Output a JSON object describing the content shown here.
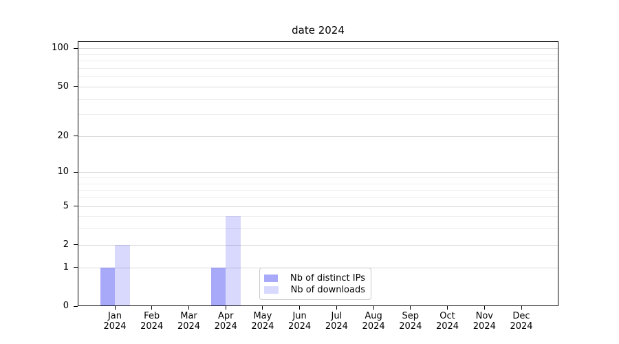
{
  "chart_data": {
    "type": "bar",
    "title": "date 2024",
    "year_label": "2024",
    "categories": [
      "Jan",
      "Feb",
      "Mar",
      "Apr",
      "May",
      "Jun",
      "Jul",
      "Aug",
      "Sep",
      "Oct",
      "Nov",
      "Dec"
    ],
    "series": [
      {
        "name": "Nb of distinct IPs",
        "color": "rgba(2,2,240,0.34)",
        "values": [
          1,
          0,
          0,
          1,
          0,
          0,
          0,
          0,
          0,
          0,
          0,
          0
        ]
      },
      {
        "name": "Nb of downloads",
        "color": "rgba(2,2,240,0.15)",
        "values": [
          2,
          0,
          0,
          4,
          0,
          0,
          0,
          0,
          0,
          0,
          0,
          0
        ]
      }
    ],
    "y_axis": {
      "scale": "log1p",
      "ticks": [
        0,
        1,
        2,
        5,
        10,
        20,
        50,
        100
      ],
      "minor_gridlines": [
        3,
        4,
        6,
        7,
        8,
        9,
        30,
        40,
        60,
        70,
        80,
        90
      ],
      "range": [
        0,
        114
      ]
    },
    "legend": {
      "position": "lower center"
    },
    "grid": true,
    "colors": {
      "major_grid": "#d9d9d9",
      "minor_grid": "#ededed",
      "axis": "#000000",
      "background": "#ffffff"
    }
  }
}
